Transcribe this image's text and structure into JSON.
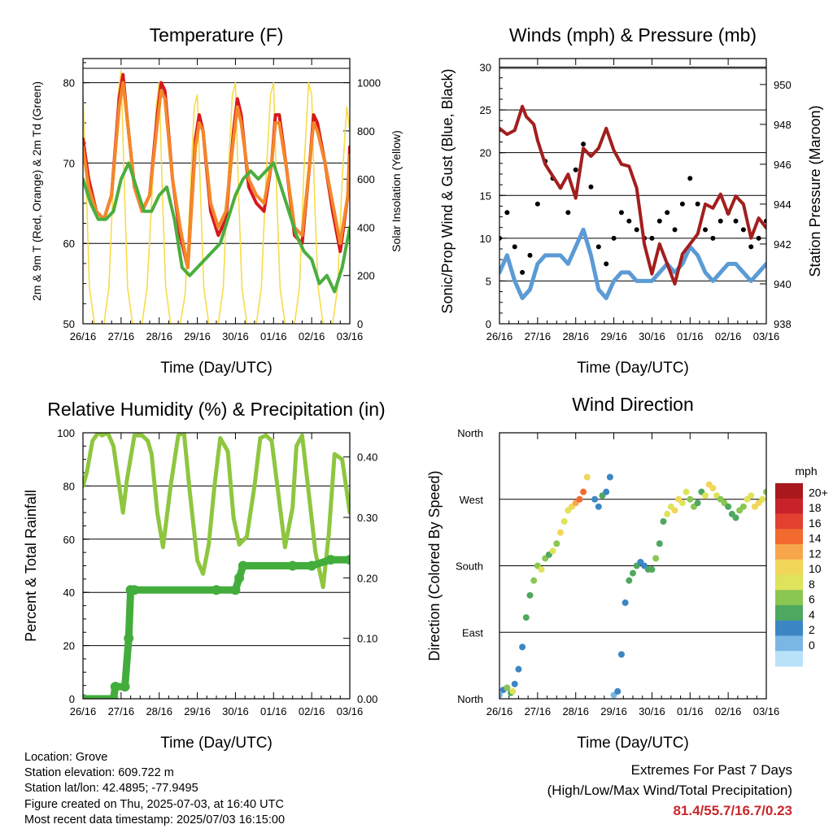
{
  "x_ticks": [
    "26/16",
    "27/16",
    "28/16",
    "29/16",
    "30/16",
    "01/16",
    "02/16",
    "03/16"
  ],
  "info": {
    "location": "Location: Grove",
    "elevation": "Station elevation: 609.722 m",
    "latlon": "Station lat/lon: 42.4895; -77.9495",
    "created": "Figure created on Thu, 2025-07-03, at 16:40 UTC",
    "recent": "Most recent data timestamp: 2025/07/03 16:15:00"
  },
  "extremes": {
    "title": "Extremes For Past 7 Days",
    "subtitle": "(High/Low/Max Wind/Total Precipitation)",
    "values": "81.4/55.7/16.7/0.23"
  },
  "colors": {
    "temp_2m": "#d7191c",
    "temp_9m": "#f4872a",
    "dewpoint": "#4aae3e",
    "solar": "#f7dc4a",
    "sonic_wind": "#5b9bd5",
    "gust": "#000000",
    "pressure": "#a31e1e",
    "rh": "#8ec63f",
    "precip": "#43ad3c"
  },
  "chart_data": [
    {
      "id": "temperature",
      "type": "line",
      "title": "Temperature (F)",
      "xlabel": "Time (Day/UTC)",
      "ylabel": "2m & 9m T (Red, Orange) & 2m Td (Green)",
      "ylabel_right": "Solar Insolation (Yellow)",
      "ylim": [
        50,
        83
      ],
      "yticks": [
        50,
        60,
        70,
        80
      ],
      "ylim_right": [
        0,
        1100
      ],
      "yticks_right": [
        0,
        200,
        400,
        600,
        800,
        1000
      ],
      "x_unit": "days since 26/16 UTC",
      "series": [
        {
          "name": "2m T",
          "x": [
            0.0,
            0.15,
            0.35,
            0.55,
            0.75,
            0.95,
            1.05,
            1.15,
            1.35,
            1.55,
            1.75,
            1.95,
            2.05,
            2.15,
            2.35,
            2.55,
            2.75,
            2.95,
            3.05,
            3.15,
            3.35,
            3.55,
            3.75,
            3.95,
            4.05,
            4.15,
            4.35,
            4.55,
            4.75,
            4.95,
            5.05,
            5.15,
            5.35,
            5.55,
            5.75,
            5.95,
            6.05,
            6.15,
            6.35,
            6.55,
            6.75,
            6.95,
            7.0
          ],
          "y": [
            73,
            68,
            64,
            63,
            66,
            78,
            81,
            76,
            67,
            64,
            66,
            76,
            80,
            79,
            68,
            61,
            57,
            73,
            76,
            74,
            64,
            61,
            63,
            74,
            78,
            76,
            67,
            65,
            64,
            70,
            76,
            76,
            69,
            61,
            60,
            70,
            76,
            75,
            70,
            64,
            59,
            66,
            72
          ]
        },
        {
          "name": "9m T",
          "x": [
            0.0,
            0.15,
            0.35,
            0.55,
            0.75,
            0.95,
            1.05,
            1.15,
            1.35,
            1.55,
            1.75,
            1.95,
            2.05,
            2.15,
            2.35,
            2.55,
            2.75,
            2.95,
            3.05,
            3.15,
            3.35,
            3.55,
            3.75,
            3.95,
            4.05,
            4.15,
            4.35,
            4.55,
            4.75,
            4.95,
            5.05,
            5.15,
            5.35,
            5.55,
            5.75,
            5.95,
            6.05,
            6.15,
            6.35,
            6.55,
            6.75,
            6.95,
            7.0
          ],
          "y": [
            72,
            67,
            64,
            63,
            66,
            77,
            80,
            76,
            67,
            64,
            66,
            75,
            79,
            78,
            68,
            62,
            57,
            72,
            75,
            74,
            65,
            62,
            64,
            73,
            77,
            75,
            68,
            66,
            65,
            70,
            75,
            75,
            69,
            62,
            61,
            70,
            75,
            74,
            70,
            65,
            60,
            66,
            71
          ]
        },
        {
          "name": "2m Td",
          "x": [
            0.0,
            0.2,
            0.4,
            0.6,
            0.8,
            1.0,
            1.2,
            1.4,
            1.6,
            1.8,
            2.0,
            2.2,
            2.4,
            2.6,
            2.8,
            3.0,
            3.2,
            3.4,
            3.6,
            3.8,
            4.0,
            4.2,
            4.4,
            4.6,
            4.8,
            5.0,
            5.2,
            5.4,
            5.6,
            5.8,
            6.0,
            6.2,
            6.4,
            6.6,
            6.8,
            7.0
          ],
          "y": [
            68,
            65,
            63,
            63,
            64,
            68,
            70,
            67,
            64,
            64,
            66,
            67,
            63,
            57,
            56,
            57,
            58,
            59,
            60,
            63,
            66,
            68,
            69,
            68,
            69,
            70,
            67,
            64,
            61,
            59,
            58,
            55,
            56,
            54,
            57,
            62
          ]
        },
        {
          "name": "Solar Insolation",
          "axis": "right",
          "x": [
            0.0,
            0.08,
            0.17,
            0.3,
            0.42,
            0.55,
            0.68,
            0.8,
            0.92,
            1.0,
            1.08,
            1.17,
            1.3,
            1.42,
            1.55,
            1.68,
            1.8,
            1.92,
            2.0,
            2.08,
            2.17,
            2.3,
            2.42,
            2.55,
            2.68,
            2.8,
            2.92,
            3.0,
            3.08,
            3.17,
            3.3,
            3.42,
            3.55,
            3.68,
            3.8,
            3.92,
            4.0,
            4.08,
            4.17,
            4.3,
            4.42,
            4.55,
            4.68,
            4.8,
            4.92,
            5.0,
            5.08,
            5.17,
            5.3,
            5.42,
            5.55,
            5.68,
            5.8,
            5.92,
            6.0,
            6.08,
            6.17,
            6.3,
            6.42,
            6.55,
            6.68,
            6.8,
            6.92,
            7.0
          ],
          "y": [
            950,
            600,
            150,
            0,
            0,
            0,
            150,
            600,
            950,
            1050,
            600,
            150,
            0,
            0,
            0,
            150,
            500,
            900,
            1000,
            550,
            150,
            0,
            0,
            0,
            120,
            500,
            900,
            950,
            550,
            150,
            0,
            0,
            0,
            150,
            600,
            950,
            1000,
            550,
            150,
            0,
            0,
            0,
            150,
            600,
            950,
            1000,
            550,
            150,
            0,
            0,
            0,
            150,
            650,
            1000,
            950,
            500,
            150,
            0,
            0,
            0,
            150,
            600,
            900,
            800
          ]
        }
      ]
    },
    {
      "id": "winds",
      "type": "line",
      "title": "Winds (mph) & Pressure (mb)",
      "xlabel": "Time (Day/UTC)",
      "ylabel": "Sonic/Prop Wind & Gust (Blue, Black)",
      "ylabel_right": "Station Pressure (Maroon)",
      "ylim": [
        0,
        31
      ],
      "yticks": [
        0,
        5,
        10,
        15,
        20,
        25,
        30
      ],
      "ylim_right": [
        938,
        951.3
      ],
      "yticks_right": [
        938,
        940,
        942,
        944,
        946,
        948,
        950
      ],
      "x_unit": "days since 26/16 UTC",
      "series": [
        {
          "name": "Gust",
          "x": [
            0.0,
            0.2,
            0.4,
            0.6,
            0.8,
            1.0,
            1.2,
            1.4,
            1.6,
            1.8,
            2.0,
            2.2,
            2.4,
            2.6,
            2.8,
            3.0,
            3.2,
            3.4,
            3.6,
            3.8,
            4.0,
            4.2,
            4.4,
            4.6,
            4.8,
            5.0,
            5.2,
            5.4,
            5.6,
            5.8,
            6.0,
            6.2,
            6.4,
            6.6,
            6.8,
            7.0
          ],
          "y": [
            10,
            13,
            9,
            6,
            8,
            14,
            19,
            17,
            16,
            13,
            18,
            21,
            16,
            9,
            7,
            10,
            13,
            12,
            11,
            10,
            10,
            12,
            13,
            11,
            14,
            17,
            14,
            11,
            10,
            12,
            13,
            12,
            11,
            9,
            10,
            12
          ]
        },
        {
          "name": "Sonic/Prop Wind",
          "x": [
            0.0,
            0.2,
            0.4,
            0.6,
            0.8,
            1.0,
            1.2,
            1.4,
            1.6,
            1.8,
            2.0,
            2.2,
            2.4,
            2.6,
            2.8,
            3.0,
            3.2,
            3.4,
            3.6,
            3.8,
            4.0,
            4.2,
            4.4,
            4.6,
            4.8,
            5.0,
            5.2,
            5.4,
            5.6,
            5.8,
            6.0,
            6.2,
            6.4,
            6.6,
            6.8,
            7.0
          ],
          "y": [
            6,
            8,
            5,
            3,
            4,
            7,
            8,
            8,
            8,
            7,
            9,
            11,
            8,
            4,
            3,
            5,
            6,
            6,
            5,
            5,
            5,
            6,
            7,
            6,
            7,
            9,
            8,
            6,
            5,
            6,
            7,
            7,
            6,
            5,
            6,
            7
          ]
        },
        {
          "name": "Station Pressure",
          "axis": "right",
          "x": [
            0.0,
            0.2,
            0.4,
            0.6,
            0.7,
            0.9,
            1.0,
            1.2,
            1.4,
            1.6,
            1.8,
            2.0,
            2.2,
            2.4,
            2.6,
            2.8,
            3.0,
            3.2,
            3.4,
            3.6,
            3.8,
            4.0,
            4.2,
            4.4,
            4.6,
            4.8,
            5.0,
            5.2,
            5.4,
            5.6,
            5.8,
            6.0,
            6.2,
            6.4,
            6.6,
            6.8,
            7.0
          ],
          "y": [
            947.8,
            947.5,
            947.7,
            948.9,
            948.4,
            948.0,
            947.2,
            946.0,
            945.4,
            944.8,
            945.5,
            944.3,
            946.8,
            946.4,
            946.8,
            947.8,
            946.7,
            946.0,
            945.9,
            944.8,
            942.0,
            940.5,
            942.0,
            941.0,
            940.0,
            941.5,
            942.0,
            942.5,
            944.0,
            943.8,
            944.5,
            943.5,
            944.4,
            944.0,
            942.3,
            943.3,
            942.8
          ]
        }
      ]
    },
    {
      "id": "humidity",
      "type": "line",
      "title": "Relative Humidity (%) & Precipitation (in)",
      "xlabel": "Time (Day/UTC)",
      "ylabel": "Percent & Total Rainfall",
      "ylim": [
        0,
        100
      ],
      "yticks": [
        0,
        20,
        40,
        60,
        80,
        100
      ],
      "ylim_right": [
        0,
        0.44
      ],
      "yticks_right": [
        "0.00",
        "0.10",
        "0.20",
        "0.30",
        "0.40"
      ],
      "x_unit": "days since 26/16 UTC",
      "series": [
        {
          "name": "Relative Humidity",
          "x": [
            0.0,
            0.1,
            0.25,
            0.4,
            0.5,
            0.65,
            0.8,
            0.95,
            1.05,
            1.15,
            1.35,
            1.55,
            1.7,
            1.8,
            1.95,
            2.1,
            2.3,
            2.5,
            2.65,
            2.8,
            3.0,
            3.15,
            3.3,
            3.45,
            3.6,
            3.8,
            3.95,
            4.1,
            4.3,
            4.5,
            4.65,
            4.8,
            4.95,
            5.1,
            5.3,
            5.5,
            5.6,
            5.75,
            5.95,
            6.1,
            6.3,
            6.45,
            6.6,
            6.8,
            6.95,
            7.0
          ],
          "y": [
            80,
            85,
            97,
            100,
            99,
            100,
            95,
            80,
            70,
            82,
            99,
            99,
            97,
            92,
            70,
            57,
            80,
            99,
            100,
            78,
            52,
            47,
            58,
            80,
            98,
            93,
            68,
            58,
            61,
            80,
            98,
            99,
            97,
            80,
            57,
            72,
            95,
            99,
            74,
            55,
            42,
            62,
            92,
            90,
            75,
            70
          ]
        },
        {
          "name": "Total Precipitation",
          "axis": "right",
          "x": [
            0.0,
            0.8,
            0.85,
            1.1,
            1.2,
            1.25,
            1.35,
            3.5,
            4.0,
            4.1,
            4.2,
            5.5,
            6.0,
            6.5,
            7.0
          ],
          "y": [
            0.0,
            0.0,
            0.02,
            0.02,
            0.1,
            0.18,
            0.18,
            0.18,
            0.18,
            0.2,
            0.22,
            0.22,
            0.22,
            0.23,
            0.23
          ]
        }
      ]
    },
    {
      "id": "direction",
      "type": "scatter",
      "title": "Wind Direction",
      "xlabel": "Time (Day/UTC)",
      "ylabel": "Direction (Colored By Speed)",
      "y_categories": [
        "North",
        "East",
        "South",
        "West",
        "North"
      ],
      "yticks_deg": [
        0,
        90,
        180,
        270,
        360
      ],
      "ylim": [
        0,
        360
      ],
      "x_unit": "days since 26/16 UTC",
      "colorbar": {
        "unit": "mph",
        "labels": [
          "20+",
          "18",
          "16",
          "14",
          "12",
          "10",
          "8",
          "6",
          "4",
          "2",
          "0"
        ],
        "colors": [
          "#a8181d",
          "#c8232b",
          "#e3402f",
          "#f26a2e",
          "#f8a64c",
          "#f1d65a",
          "#dfe35c",
          "#8ac652",
          "#4ea85f",
          "#3d86c4",
          "#7ab7e5",
          "#b9e2f8"
        ]
      },
      "points": {
        "x": [
          0.0,
          0.1,
          0.2,
          0.3,
          0.35,
          0.4,
          0.5,
          0.6,
          0.7,
          0.8,
          0.9,
          1.0,
          1.1,
          1.2,
          1.3,
          1.4,
          1.5,
          1.6,
          1.7,
          1.8,
          1.9,
          2.0,
          2.1,
          2.2,
          2.3,
          2.5,
          2.6,
          2.7,
          2.8,
          2.9,
          3.0,
          3.1,
          3.2,
          3.3,
          3.4,
          3.5,
          3.6,
          3.7,
          3.8,
          3.9,
          4.0,
          4.1,
          4.2,
          4.3,
          4.4,
          4.5,
          4.6,
          4.7,
          4.8,
          4.9,
          5.0,
          5.1,
          5.2,
          5.3,
          5.4,
          5.5,
          5.6,
          5.7,
          5.8,
          5.9,
          6.0,
          6.1,
          6.2,
          6.3,
          6.4,
          6.5,
          6.6,
          6.7,
          6.8,
          6.9,
          7.0
        ],
        "y": [
          5,
          12,
          15,
          8,
          10,
          20,
          40,
          70,
          110,
          140,
          160,
          180,
          175,
          190,
          195,
          200,
          210,
          225,
          240,
          255,
          260,
          265,
          270,
          280,
          300,
          270,
          260,
          275,
          280,
          300,
          5,
          10,
          60,
          130,
          160,
          170,
          180,
          185,
          180,
          175,
          175,
          190,
          210,
          240,
          250,
          260,
          255,
          270,
          265,
          280,
          270,
          260,
          265,
          280,
          275,
          290,
          285,
          275,
          270,
          265,
          260,
          250,
          245,
          255,
          260,
          270,
          275,
          260,
          265,
          270,
          280
        ],
        "speed": [
          2,
          3,
          8,
          6,
          10,
          4,
          4,
          3,
          5,
          6,
          7,
          8,
          9,
          8,
          6,
          10,
          8,
          12,
          9,
          10,
          11,
          13,
          15,
          16,
          12,
          4,
          3,
          5,
          4,
          3,
          2,
          3,
          4,
          4,
          5,
          6,
          5,
          4,
          4,
          6,
          5,
          7,
          6,
          5,
          9,
          10,
          11,
          12,
          10,
          9,
          8,
          7,
          6,
          5,
          10,
          12,
          11,
          9,
          8,
          7,
          6,
          5,
          6,
          7,
          8,
          9,
          10,
          11,
          12,
          9,
          8
        ]
      }
    }
  ]
}
